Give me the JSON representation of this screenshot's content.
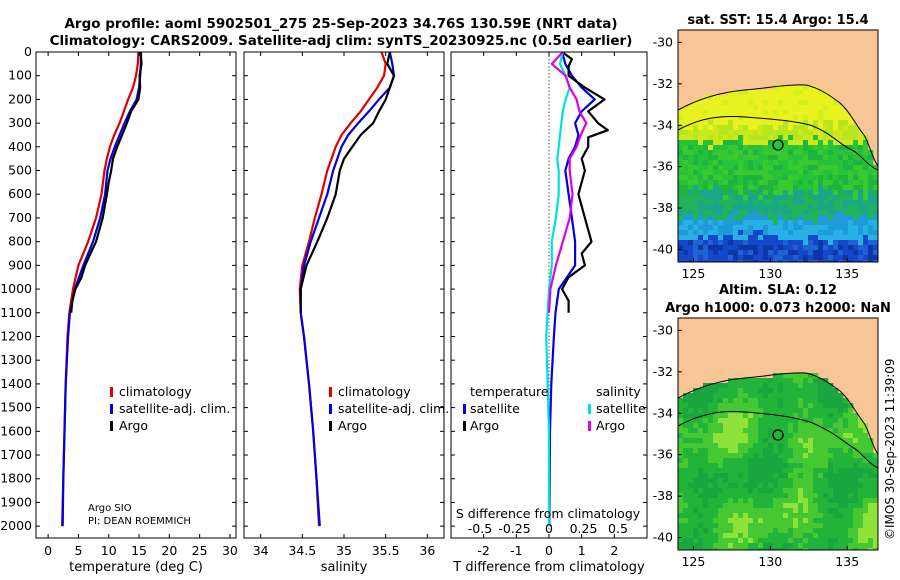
{
  "header": {
    "title_line1": "Argo profile: aoml 5902501_275 25-Sep-2023 34.76S 130.59E (NRT data)",
    "title_line2": "Climatology: CARS2009. Satellite-adj clim: synTS_20230925.nc (0.5d earlier)"
  },
  "colors": {
    "climatology": "#e00000",
    "satellite_adj": "#0000e0",
    "argo": "#000000",
    "sat_salinity": "#00e0e0",
    "argo_salinity_diff": "#e000e0",
    "land": "#f9c596"
  },
  "credit": "©IMOS 30-Sep-2023 11:39:09",
  "chart_data": [
    {
      "type": "line",
      "xlabel": "temperature (deg C)",
      "xlim": [
        -2,
        31
      ],
      "xticks": [
        0,
        5,
        10,
        15,
        20,
        25,
        30
      ],
      "ylim": [
        0,
        2050
      ],
      "yticks": [
        0,
        100,
        200,
        300,
        400,
        500,
        600,
        700,
        800,
        900,
        1000,
        1100,
        1200,
        1300,
        1400,
        1500,
        1600,
        1700,
        1800,
        1900,
        2000
      ],
      "legend": [
        "climatology",
        "satellite-adj. clim.",
        "Argo"
      ],
      "legend_placement": "lower-right",
      "annotation": [
        "Argo SIO",
        "PI: DEAN ROEMMICH"
      ],
      "series": [
        {
          "name": "climatology",
          "depth": [
            0,
            50,
            100,
            150,
            200,
            250,
            300,
            350,
            400,
            450,
            500,
            600,
            700,
            800,
            900,
            1000,
            1100,
            1200,
            1400,
            1600,
            1800,
            2000
          ],
          "values": [
            14.9,
            14.8,
            14.5,
            14.0,
            13.2,
            12.5,
            11.8,
            10.9,
            10.2,
            9.7,
            9.3,
            8.8,
            7.9,
            6.6,
            5.0,
            4.1,
            3.5,
            3.2,
            2.9,
            2.7,
            2.5,
            2.3
          ]
        },
        {
          "name": "satellite-adj. clim.",
          "depth": [
            0,
            50,
            100,
            150,
            200,
            250,
            300,
            350,
            400,
            450,
            500,
            600,
            700,
            800,
            900,
            1000,
            1100,
            1200,
            1400,
            1600,
            1800,
            2000
          ],
          "values": [
            15.3,
            15.3,
            15.2,
            15.0,
            14.6,
            13.5,
            12.6,
            11.8,
            11.0,
            10.3,
            9.8,
            9.4,
            8.6,
            7.4,
            5.8,
            4.4,
            3.6,
            3.3,
            2.9,
            2.7,
            2.5,
            2.4
          ]
        },
        {
          "name": "Argo",
          "depth": [
            0,
            50,
            100,
            150,
            200,
            250,
            300,
            350,
            400,
            450,
            500,
            550,
            600,
            700,
            800,
            850,
            900,
            950,
            1000,
            1050,
            1100
          ],
          "values": [
            15.3,
            15.4,
            15.1,
            15.2,
            14.9,
            13.7,
            13.0,
            12.2,
            11.4,
            10.7,
            10.4,
            10.0,
            9.7,
            9.0,
            7.9,
            7.0,
            6.1,
            5.5,
            4.5,
            4.0,
            3.8
          ]
        }
      ]
    },
    {
      "type": "line",
      "xlabel": "salinity",
      "xlim": [
        33.8,
        36.2
      ],
      "xticks": [
        34,
        34.5,
        35,
        35.5,
        36
      ],
      "ylim": [
        0,
        2050
      ],
      "legend": [
        "climatology",
        "satellite-adj. clim.",
        "Argo"
      ],
      "legend_placement": "lower-right",
      "series": [
        {
          "name": "climatology",
          "depth": [
            0,
            50,
            100,
            150,
            200,
            250,
            300,
            350,
            400,
            450,
            500,
            600,
            700,
            800,
            900,
            1000,
            1100,
            1200,
            1400,
            1600,
            1800,
            2000
          ],
          "values": [
            35.45,
            35.5,
            35.48,
            35.4,
            35.3,
            35.2,
            35.08,
            34.97,
            34.9,
            34.85,
            34.8,
            34.73,
            34.65,
            34.58,
            34.5,
            34.47,
            34.48,
            34.52,
            34.58,
            34.63,
            34.67,
            34.7
          ]
        },
        {
          "name": "satellite-adj. clim.",
          "depth": [
            0,
            50,
            100,
            150,
            200,
            250,
            300,
            350,
            400,
            450,
            500,
            600,
            700,
            800,
            900,
            1000,
            1100,
            1200,
            1400,
            1600,
            1800,
            2000
          ],
          "values": [
            35.55,
            35.58,
            35.6,
            35.55,
            35.42,
            35.3,
            35.17,
            35.05,
            34.97,
            34.92,
            34.87,
            34.8,
            34.7,
            34.6,
            34.52,
            34.48,
            34.48,
            34.52,
            34.58,
            34.63,
            34.67,
            34.71
          ]
        },
        {
          "name": "Argo",
          "depth": [
            0,
            50,
            100,
            150,
            200,
            250,
            300,
            350,
            400,
            450,
            500,
            600,
            700,
            800,
            900,
            1000,
            1100
          ],
          "values": [
            35.55,
            35.52,
            35.6,
            35.55,
            35.5,
            35.42,
            35.35,
            35.2,
            35.1,
            35.0,
            34.95,
            34.9,
            34.8,
            34.68,
            34.55,
            34.48,
            34.48
          ]
        }
      ]
    },
    {
      "type": "line",
      "xlabel": "T difference from climatology",
      "xlabel_top": "S difference from climatology",
      "xlim": [
        -3,
        3
      ],
      "xticks": [
        -2,
        -1,
        0,
        1,
        2
      ],
      "xticks_top": [
        "-0.5",
        "-0.25",
        "0",
        "0.25",
        "0.5"
      ],
      "ylim": [
        0,
        2050
      ],
      "legend_temperature_title": "temperature",
      "legend_salinity_title": "salinity",
      "legend_temperature": [
        "satellite",
        "Argo"
      ],
      "legend_salinity": [
        "satellite",
        "Argo"
      ],
      "series": [
        {
          "name": "temperature satellite",
          "depth": [
            0,
            50,
            100,
            150,
            200,
            250,
            300,
            350,
            400,
            450,
            500,
            600,
            700,
            800,
            900,
            1000,
            1100,
            1200,
            1400,
            1600,
            1800,
            2000
          ],
          "values": [
            0.4,
            0.5,
            0.7,
            1.0,
            1.4,
            1.0,
            0.8,
            0.9,
            0.8,
            0.6,
            0.5,
            0.6,
            0.7,
            0.8,
            0.8,
            0.3,
            0.2,
            0.15,
            0.07,
            0.03,
            0.02,
            0.01
          ]
        },
        {
          "name": "temperature Argo",
          "depth": [
            0,
            30,
            60,
            100,
            150,
            200,
            250,
            300,
            330,
            360,
            400,
            450,
            500,
            600,
            700,
            800,
            850,
            900,
            950,
            1000,
            1050,
            1100
          ],
          "values": [
            0.4,
            0.7,
            0.6,
            0.6,
            1.1,
            1.7,
            1.2,
            1.5,
            1.8,
            1.2,
            1.2,
            1.0,
            1.1,
            0.9,
            1.1,
            1.3,
            1.0,
            1.1,
            0.6,
            0.4,
            0.6,
            0.6
          ]
        },
        {
          "name": "salinity satellite",
          "depth": [
            0,
            50,
            100,
            150,
            200,
            250,
            300,
            350,
            400,
            450,
            500,
            600,
            700,
            800,
            900,
            1000,
            1100,
            1200,
            1400,
            1600,
            1800,
            2000
          ],
          "values": [
            0.1,
            0.08,
            0.12,
            0.15,
            0.12,
            0.1,
            0.09,
            0.08,
            0.07,
            0.06,
            0.07,
            0.07,
            0.05,
            0.02,
            0.02,
            0.0,
            -0.01,
            -0.02,
            -0.01,
            0.0,
            0.0,
            0.0
          ]
        },
        {
          "name": "salinity Argo",
          "depth": [
            0,
            50,
            100,
            150,
            200,
            250,
            300,
            350,
            400,
            450,
            500,
            600,
            700,
            800,
            900,
            1000,
            1100
          ],
          "values": [
            0.1,
            0.02,
            0.12,
            0.15,
            0.2,
            0.22,
            0.27,
            0.23,
            0.2,
            0.15,
            0.15,
            0.17,
            0.15,
            0.1,
            0.05,
            0.01,
            0.0
          ]
        }
      ]
    },
    {
      "type": "heatmap",
      "title": "sat. SST: 15.4 Argo: 15.4",
      "xticks": [
        125,
        130,
        135
      ],
      "yticks": [
        -30,
        -32,
        -34,
        -36,
        -38,
        -40
      ],
      "xlim": [
        124,
        137
      ],
      "ylim": [
        -40.6,
        -29.4
      ],
      "marker": {
        "lon": 130.59,
        "lat": -34.76
      }
    },
    {
      "type": "heatmap",
      "title_line1": "Altim. SLA: 0.12",
      "title_line2": "Argo h1000: 0.073 h2000: NaN",
      "xticks": [
        125,
        130,
        135
      ],
      "yticks": [
        -30,
        -32,
        -34,
        -36,
        -38,
        -40
      ],
      "xlim": [
        124,
        137
      ],
      "ylim": [
        -40.6,
        -29.4
      ],
      "marker": {
        "lon": 130.59,
        "lat": -34.76
      }
    }
  ]
}
